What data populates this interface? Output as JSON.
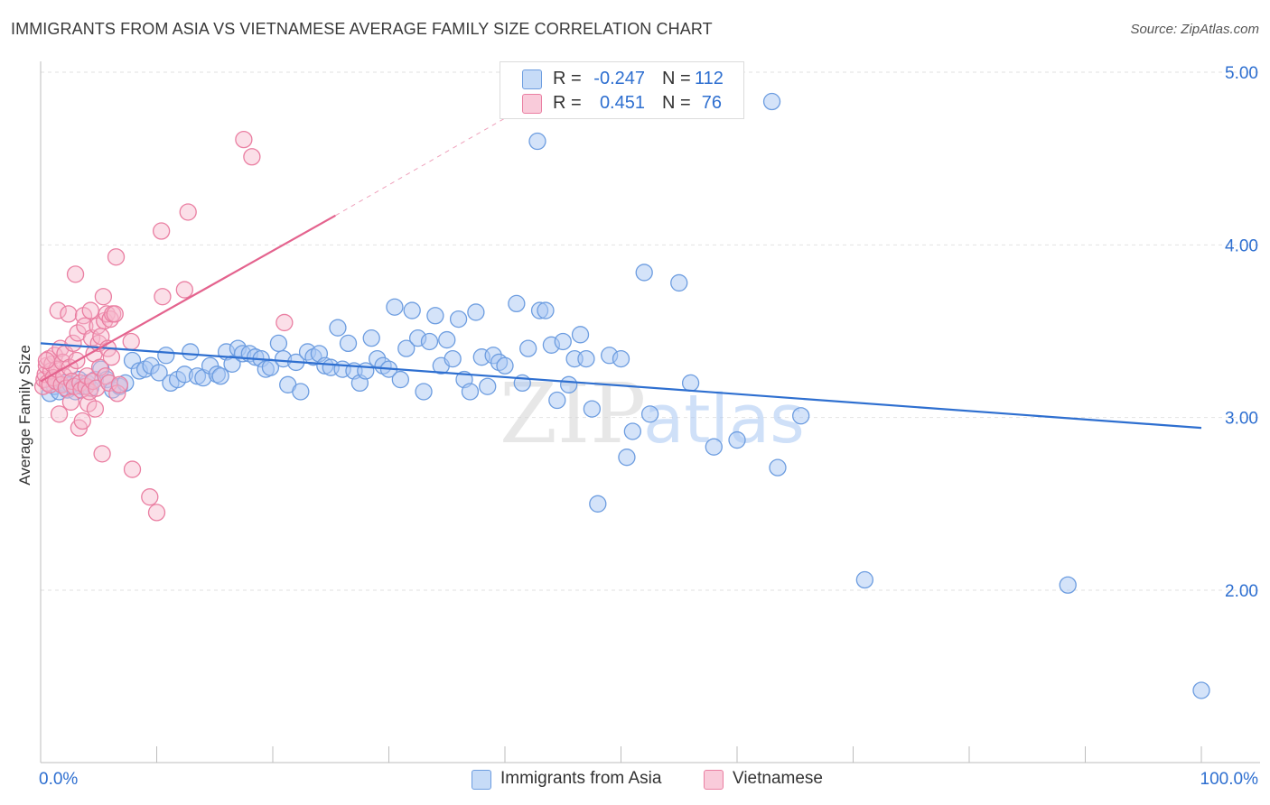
{
  "title": "IMMIGRANTS FROM ASIA VS VIETNAMESE AVERAGE FAMILY SIZE CORRELATION CHART",
  "source": "Source: ZipAtlas.com",
  "watermark": {
    "zip": "ZIP",
    "atlas": "atlas"
  },
  "legend": {
    "rows": [
      {
        "r_label": "R =",
        "r_value": "-0.247",
        "n_label": "N =",
        "n_value": "112"
      },
      {
        "r_label": "R =",
        "r_value": "0.451",
        "n_label": "N =",
        "n_value": "76"
      }
    ]
  },
  "bottom_legend": [
    "Immigrants from Asia",
    "Vietnamese"
  ],
  "colors": {
    "blue_fill": "#a9c8f3",
    "blue_stroke": "#6d9de0",
    "blue_line": "#2e6fd0",
    "pink_fill": "#f7b8cc",
    "pink_stroke": "#ea7fa2",
    "pink_line": "#e4638e",
    "axis_text": "#2e6fd0",
    "grid": "#e2e2e2"
  },
  "chart_data": {
    "type": "scatter",
    "title": "IMMIGRANTS FROM ASIA VS VIETNAMESE AVERAGE FAMILY SIZE CORRELATION CHART",
    "xlabel": "",
    "ylabel": "Average Family Size",
    "xlim": [
      0,
      100
    ],
    "ylim": [
      1.0,
      5.1
    ],
    "x_tick_labels": [
      "0.0%",
      "100.0%"
    ],
    "y_ticks": [
      2.0,
      3.0,
      4.0,
      5.0
    ],
    "y_tick_labels": [
      "2.00",
      "3.00",
      "4.00",
      "5.00"
    ],
    "grid": "horizontal dashed",
    "legend_position": "top-center",
    "series": [
      {
        "name": "Immigrants from Asia",
        "color": "#6d9de0",
        "trend": {
          "x": [
            0,
            100
          ],
          "y": [
            3.43,
            2.94
          ]
        },
        "points": [
          [
            0.8,
            3.14
          ],
          [
            1.2,
            3.18
          ],
          [
            1.6,
            3.15
          ],
          [
            2.0,
            3.2
          ],
          [
            2.3,
            3.16
          ],
          [
            2.6,
            3.19
          ],
          [
            3.0,
            3.15
          ],
          [
            3.3,
            3.22
          ],
          [
            3.6,
            3.18
          ],
          [
            4.0,
            3.2
          ],
          [
            4.3,
            3.17
          ],
          [
            4.7,
            3.22
          ],
          [
            5.2,
            3.28
          ],
          [
            5.7,
            3.22
          ],
          [
            6.2,
            3.16
          ],
          [
            6.8,
            3.18
          ],
          [
            7.3,
            3.2
          ],
          [
            7.9,
            3.33
          ],
          [
            8.5,
            3.27
          ],
          [
            9.0,
            3.28
          ],
          [
            9.5,
            3.3
          ],
          [
            10.2,
            3.26
          ],
          [
            10.8,
            3.36
          ],
          [
            11.2,
            3.2
          ],
          [
            11.8,
            3.22
          ],
          [
            12.4,
            3.25
          ],
          [
            12.9,
            3.38
          ],
          [
            13.5,
            3.24
          ],
          [
            14.0,
            3.23
          ],
          [
            14.6,
            3.3
          ],
          [
            15.2,
            3.25
          ],
          [
            15.5,
            3.24
          ],
          [
            16.0,
            3.38
          ],
          [
            16.5,
            3.31
          ],
          [
            17.0,
            3.4
          ],
          [
            17.4,
            3.37
          ],
          [
            18.0,
            3.37
          ],
          [
            18.5,
            3.35
          ],
          [
            19.0,
            3.34
          ],
          [
            19.4,
            3.28
          ],
          [
            19.8,
            3.29
          ],
          [
            20.5,
            3.43
          ],
          [
            20.9,
            3.34
          ],
          [
            21.3,
            3.19
          ],
          [
            22.0,
            3.32
          ],
          [
            22.4,
            3.15
          ],
          [
            23.0,
            3.38
          ],
          [
            23.5,
            3.35
          ],
          [
            24.0,
            3.37
          ],
          [
            24.5,
            3.3
          ],
          [
            25.0,
            3.29
          ],
          [
            25.6,
            3.52
          ],
          [
            26.0,
            3.28
          ],
          [
            26.5,
            3.43
          ],
          [
            27.0,
            3.27
          ],
          [
            27.5,
            3.2
          ],
          [
            28.0,
            3.27
          ],
          [
            28.5,
            3.46
          ],
          [
            29.0,
            3.34
          ],
          [
            29.5,
            3.3
          ],
          [
            30.0,
            3.28
          ],
          [
            30.5,
            3.64
          ],
          [
            31.0,
            3.22
          ],
          [
            31.5,
            3.4
          ],
          [
            32.0,
            3.62
          ],
          [
            32.5,
            3.46
          ],
          [
            33.0,
            3.15
          ],
          [
            33.5,
            3.44
          ],
          [
            34.0,
            3.59
          ],
          [
            34.5,
            3.3
          ],
          [
            35.0,
            3.45
          ],
          [
            35.5,
            3.34
          ],
          [
            36.0,
            3.57
          ],
          [
            36.5,
            3.22
          ],
          [
            37.0,
            3.15
          ],
          [
            37.5,
            3.61
          ],
          [
            38.0,
            3.35
          ],
          [
            38.5,
            3.18
          ],
          [
            39.0,
            3.36
          ],
          [
            39.5,
            3.32
          ],
          [
            40.0,
            3.3
          ],
          [
            41.0,
            3.66
          ],
          [
            41.5,
            3.2
          ],
          [
            42.0,
            3.4
          ],
          [
            42.8,
            4.6
          ],
          [
            43.0,
            3.62
          ],
          [
            43.5,
            3.62
          ],
          [
            44.0,
            3.42
          ],
          [
            44.5,
            3.1
          ],
          [
            45.0,
            3.44
          ],
          [
            45.5,
            3.19
          ],
          [
            46.0,
            3.34
          ],
          [
            46.5,
            3.48
          ],
          [
            47.0,
            3.34
          ],
          [
            47.5,
            3.05
          ],
          [
            48.0,
            2.5
          ],
          [
            49.0,
            3.36
          ],
          [
            50.0,
            3.34
          ],
          [
            50.5,
            2.77
          ],
          [
            51.0,
            2.92
          ],
          [
            52.0,
            3.84
          ],
          [
            52.5,
            3.02
          ],
          [
            55.0,
            3.78
          ],
          [
            56.0,
            3.2
          ],
          [
            58.0,
            2.83
          ],
          [
            60.0,
            2.87
          ],
          [
            63.0,
            4.83
          ],
          [
            63.5,
            2.71
          ],
          [
            65.5,
            3.01
          ],
          [
            71.0,
            2.06
          ],
          [
            88.5,
            2.03
          ],
          [
            100.0,
            1.42
          ]
        ]
      },
      {
        "name": "Vietnamese",
        "color": "#ea7fa2",
        "trend": {
          "x": [
            0,
            25.4
          ],
          "y": [
            3.21,
            4.17
          ],
          "extension": {
            "x": [
              25.4,
              42.5
            ],
            "y": [
              4.17,
              4.83
            ]
          }
        },
        "points": [
          [
            0.2,
            3.18
          ],
          [
            0.3,
            3.22
          ],
          [
            0.4,
            3.25
          ],
          [
            0.5,
            3.3
          ],
          [
            0.6,
            3.2
          ],
          [
            0.7,
            3.34
          ],
          [
            0.8,
            3.19
          ],
          [
            0.9,
            3.27
          ],
          [
            1.0,
            3.31
          ],
          [
            1.1,
            3.23
          ],
          [
            1.2,
            3.36
          ],
          [
            1.3,
            3.21
          ],
          [
            1.4,
            3.28
          ],
          [
            1.5,
            3.62
          ],
          [
            1.6,
            3.02
          ],
          [
            1.7,
            3.4
          ],
          [
            1.8,
            3.19
          ],
          [
            1.9,
            3.32
          ],
          [
            2.0,
            3.24
          ],
          [
            2.1,
            3.37
          ],
          [
            2.2,
            3.17
          ],
          [
            2.4,
            3.6
          ],
          [
            2.5,
            3.29
          ],
          [
            2.6,
            3.09
          ],
          [
            2.7,
            3.21
          ],
          [
            2.8,
            3.43
          ],
          [
            2.9,
            3.18
          ],
          [
            3.0,
            3.83
          ],
          [
            3.1,
            3.33
          ],
          [
            3.2,
            3.49
          ],
          [
            3.3,
            2.94
          ],
          [
            3.4,
            3.2
          ],
          [
            3.5,
            3.16
          ],
          [
            3.6,
            2.98
          ],
          [
            3.7,
            3.59
          ],
          [
            3.8,
            3.53
          ],
          [
            3.9,
            3.18
          ],
          [
            4.0,
            3.24
          ],
          [
            4.1,
            3.08
          ],
          [
            4.2,
            3.15
          ],
          [
            4.3,
            3.62
          ],
          [
            4.4,
            3.46
          ],
          [
            4.5,
            3.21
          ],
          [
            4.6,
            3.37
          ],
          [
            4.7,
            3.05
          ],
          [
            4.8,
            3.17
          ],
          [
            4.9,
            3.53
          ],
          [
            5.0,
            3.43
          ],
          [
            5.1,
            3.29
          ],
          [
            5.2,
            3.47
          ],
          [
            5.3,
            2.79
          ],
          [
            5.4,
            3.7
          ],
          [
            5.5,
            3.56
          ],
          [
            5.6,
            3.24
          ],
          [
            5.7,
            3.6
          ],
          [
            5.8,
            3.4
          ],
          [
            5.9,
            3.2
          ],
          [
            6.0,
            3.57
          ],
          [
            6.1,
            3.35
          ],
          [
            6.2,
            3.6
          ],
          [
            6.4,
            3.6
          ],
          [
            6.5,
            3.93
          ],
          [
            6.6,
            3.14
          ],
          [
            6.8,
            3.19
          ],
          [
            7.8,
            3.44
          ],
          [
            7.9,
            2.7
          ],
          [
            9.4,
            2.54
          ],
          [
            10.0,
            2.45
          ],
          [
            10.4,
            4.08
          ],
          [
            10.5,
            3.7
          ],
          [
            12.4,
            3.74
          ],
          [
            12.7,
            4.19
          ],
          [
            17.5,
            4.61
          ],
          [
            18.2,
            4.51
          ],
          [
            21.0,
            3.55
          ],
          [
            0.5,
            3.33
          ]
        ]
      }
    ]
  }
}
